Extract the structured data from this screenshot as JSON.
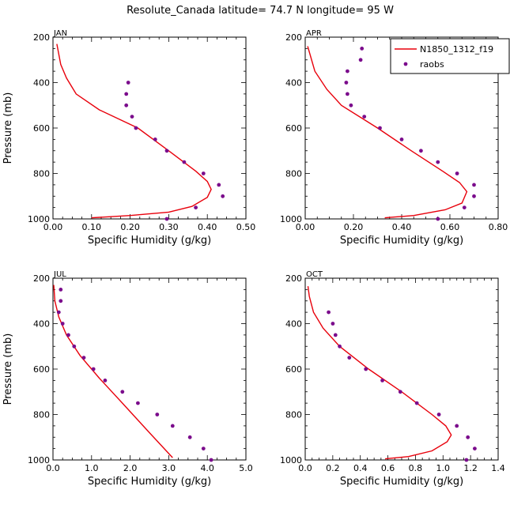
{
  "title": "Resolute_Canada  latitude= 74.7 N longitude= 95 W",
  "colors": {
    "model": "#e8000b",
    "raobs": "#7b0c8c"
  },
  "legend": {
    "model_label": "N1850_1312_f19",
    "obs_label": "raobs",
    "placement": "top-right of APR panel"
  },
  "chart_data": [
    {
      "type": "line",
      "panel": "JAN",
      "xlabel": "Specific Humidity (g/kg)",
      "ylabel": "Pressure (mb)",
      "xlim": [
        0,
        0.5
      ],
      "ylim": [
        1000,
        200
      ],
      "xticks": [
        "0.00",
        "0.10",
        "0.20",
        "0.30",
        "0.40",
        "0.50"
      ],
      "xtick_values": [
        0,
        0.1,
        0.2,
        0.3,
        0.4,
        0.5
      ],
      "yticks": [
        "200",
        "400",
        "600",
        "800",
        "1000"
      ],
      "ytick_values": [
        200,
        400,
        600,
        800,
        1000
      ],
      "series": [
        {
          "name": "N1850_1312_f19",
          "kind": "line",
          "points": [
            [
              0.1,
              995
            ],
            [
              0.2,
              985
            ],
            [
              0.3,
              970
            ],
            [
              0.36,
              945
            ],
            [
              0.4,
              905
            ],
            [
              0.41,
              870
            ],
            [
              0.4,
              835
            ],
            [
              0.37,
              790
            ],
            [
              0.3,
              700
            ],
            [
              0.22,
              600
            ],
            [
              0.12,
              520
            ],
            [
              0.06,
              450
            ],
            [
              0.035,
              380
            ],
            [
              0.02,
              320
            ],
            [
              0.01,
              230
            ]
          ]
        },
        {
          "name": "raobs",
          "kind": "scatter",
          "points": [
            [
              0.195,
              400
            ],
            [
              0.19,
              450
            ],
            [
              0.19,
              500
            ],
            [
              0.205,
              550
            ],
            [
              0.215,
              600
            ],
            [
              0.265,
              650
            ],
            [
              0.295,
              700
            ],
            [
              0.34,
              750
            ],
            [
              0.39,
              800
            ],
            [
              0.43,
              850
            ],
            [
              0.44,
              900
            ],
            [
              0.37,
              950
            ],
            [
              0.295,
              1000
            ]
          ]
        }
      ]
    },
    {
      "type": "line",
      "panel": "APR",
      "xlabel": "Specific Humidity (g/kg)",
      "ylabel": "",
      "xlim": [
        0,
        0.8
      ],
      "ylim": [
        1000,
        200
      ],
      "xticks": [
        "0.00",
        "0.20",
        "0.40",
        "0.60",
        "0.80"
      ],
      "xtick_values": [
        0,
        0.2,
        0.4,
        0.6,
        0.8
      ],
      "yticks": [
        "200",
        "400",
        "600",
        "800",
        "1000"
      ],
      "ytick_values": [
        200,
        400,
        600,
        800,
        1000
      ],
      "series": [
        {
          "name": "N1850_1312_f19",
          "kind": "line",
          "points": [
            [
              0.33,
              995
            ],
            [
              0.45,
              985
            ],
            [
              0.58,
              960
            ],
            [
              0.65,
              930
            ],
            [
              0.67,
              880
            ],
            [
              0.64,
              840
            ],
            [
              0.57,
              790
            ],
            [
              0.44,
              700
            ],
            [
              0.3,
              600
            ],
            [
              0.15,
              500
            ],
            [
              0.09,
              430
            ],
            [
              0.04,
              350
            ],
            [
              0.01,
              240
            ]
          ]
        },
        {
          "name": "raobs",
          "kind": "scatter",
          "points": [
            [
              0.235,
              250
            ],
            [
              0.23,
              300
            ],
            [
              0.175,
              350
            ],
            [
              0.17,
              400
            ],
            [
              0.175,
              450
            ],
            [
              0.19,
              500
            ],
            [
              0.245,
              550
            ],
            [
              0.31,
              600
            ],
            [
              0.4,
              650
            ],
            [
              0.48,
              700
            ],
            [
              0.55,
              750
            ],
            [
              0.63,
              800
            ],
            [
              0.7,
              850
            ],
            [
              0.7,
              900
            ],
            [
              0.66,
              950
            ],
            [
              0.55,
              1000
            ]
          ]
        }
      ]
    },
    {
      "type": "line",
      "panel": "JUL",
      "xlabel": "Specific Humidity (g/kg)",
      "ylabel": "Pressure (mb)",
      "xlim": [
        0,
        5
      ],
      "ylim": [
        1000,
        200
      ],
      "xticks": [
        "0.0",
        "1.0",
        "2.0",
        "3.0",
        "4.0",
        "5.0"
      ],
      "xtick_values": [
        0,
        1,
        2,
        3,
        4,
        5
      ],
      "yticks": [
        "200",
        "400",
        "600",
        "800",
        "1000"
      ],
      "ytick_values": [
        200,
        400,
        600,
        800,
        1000
      ],
      "series": [
        {
          "name": "N1850_1312_f19",
          "kind": "line",
          "points": [
            [
              3.1,
              990
            ],
            [
              2.5,
              880
            ],
            [
              1.8,
              750
            ],
            [
              1.2,
              640
            ],
            [
              0.7,
              540
            ],
            [
              0.35,
              450
            ],
            [
              0.15,
              370
            ],
            [
              0.05,
              300
            ],
            [
              0.02,
              230
            ]
          ]
        },
        {
          "name": "raobs",
          "kind": "scatter",
          "points": [
            [
              0.2,
              250
            ],
            [
              0.2,
              300
            ],
            [
              0.15,
              350
            ],
            [
              0.25,
              400
            ],
            [
              0.4,
              450
            ],
            [
              0.55,
              500
            ],
            [
              0.8,
              550
            ],
            [
              1.05,
              600
            ],
            [
              1.35,
              650
            ],
            [
              1.8,
              700
            ],
            [
              2.2,
              750
            ],
            [
              2.7,
              800
            ],
            [
              3.1,
              850
            ],
            [
              3.55,
              900
            ],
            [
              3.9,
              950
            ],
            [
              4.1,
              1000
            ]
          ]
        }
      ]
    },
    {
      "type": "line",
      "panel": "OCT",
      "xlabel": "Specific Humidity (g/kg)",
      "ylabel": "",
      "xlim": [
        0,
        1.4
      ],
      "ylim": [
        1000,
        200
      ],
      "xticks": [
        "0.0",
        "0.2",
        "0.4",
        "0.6",
        "0.8",
        "1.0",
        "1.2",
        "1.4"
      ],
      "xtick_values": [
        0,
        0.2,
        0.4,
        0.6,
        0.8,
        1.0,
        1.2,
        1.4
      ],
      "yticks": [
        "200",
        "400",
        "600",
        "800",
        "1000"
      ],
      "ytick_values": [
        200,
        400,
        600,
        800,
        1000
      ],
      "series": [
        {
          "name": "N1850_1312_f19",
          "kind": "line",
          "points": [
            [
              0.58,
              995
            ],
            [
              0.75,
              985
            ],
            [
              0.92,
              960
            ],
            [
              1.03,
              920
            ],
            [
              1.06,
              890
            ],
            [
              1.02,
              850
            ],
            [
              0.92,
              800
            ],
            [
              0.7,
              700
            ],
            [
              0.46,
              600
            ],
            [
              0.25,
              500
            ],
            [
              0.13,
              420
            ],
            [
              0.06,
              350
            ],
            [
              0.03,
              280
            ],
            [
              0.02,
              235
            ]
          ]
        },
        {
          "name": "raobs",
          "kind": "scatter",
          "points": [
            [
              0.17,
              350
            ],
            [
              0.2,
              400
            ],
            [
              0.22,
              450
            ],
            [
              0.25,
              500
            ],
            [
              0.32,
              550
            ],
            [
              0.44,
              600
            ],
            [
              0.56,
              650
            ],
            [
              0.69,
              700
            ],
            [
              0.81,
              750
            ],
            [
              0.97,
              800
            ],
            [
              1.1,
              850
            ],
            [
              1.18,
              900
            ],
            [
              1.23,
              950
            ],
            [
              1.17,
              1000
            ]
          ]
        }
      ]
    }
  ]
}
